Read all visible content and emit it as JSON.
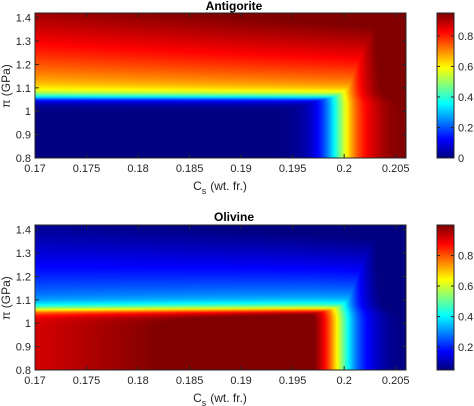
{
  "chart_data": [
    {
      "type": "heatmap",
      "title": "Antigorite",
      "xlabel": "C",
      "xlabel_sub": "s",
      "xlabel_unit": "(wt. fr.)",
      "ylabel": "π (GPa)",
      "xlim": [
        0.17,
        0.206
      ],
      "ylim": [
        0.8,
        1.42
      ],
      "xticks": [
        "0.17",
        "0.175",
        "0.18",
        "0.185",
        "0.19",
        "0.195",
        "0.2",
        "0.205"
      ],
      "yticks": [
        "0.8",
        "0.9",
        "1",
        "1.1",
        "1.2",
        "1.3",
        "1.4"
      ],
      "colorbar": {
        "range": [
          0,
          0.95
        ],
        "ticks": [
          "0",
          "0.2",
          "0.4",
          "0.6",
          "0.8"
        ]
      },
      "description": "Near-zero values in the lower-left region (π below ~1.05, C_s below ~0.197); values rise sharply with π above 1.05 and with C_s above 0.197, reaching ~0.9-0.95 at the upper right.",
      "pattern": "antigorite"
    },
    {
      "type": "heatmap",
      "title": "Olivine",
      "xlabel": "C",
      "xlabel_sub": "s",
      "xlabel_unit": "(wt. fr.)",
      "ylabel": "π (GPa)",
      "xlim": [
        0.17,
        0.206
      ],
      "ylim": [
        0.8,
        1.42
      ],
      "xticks": [
        "0.17",
        "0.175",
        "0.18",
        "0.185",
        "0.19",
        "0.195",
        "0.2",
        "0.205"
      ],
      "yticks": [
        "0.8",
        "0.9",
        "1",
        "1.1",
        "1.2",
        "1.3",
        "1.4"
      ],
      "colorbar": {
        "range": [
          0.05,
          1.0
        ],
        "ticks": [
          "0.2",
          "0.4",
          "0.6",
          "0.8"
        ]
      },
      "description": "Complement of antigorite: high values (~0.9-1.0) in the lower-left region (π below ~1.05, C_s below ~0.197), decreasing to ~0.05-0.1 at high π and high C_s.",
      "pattern": "olivine"
    }
  ]
}
